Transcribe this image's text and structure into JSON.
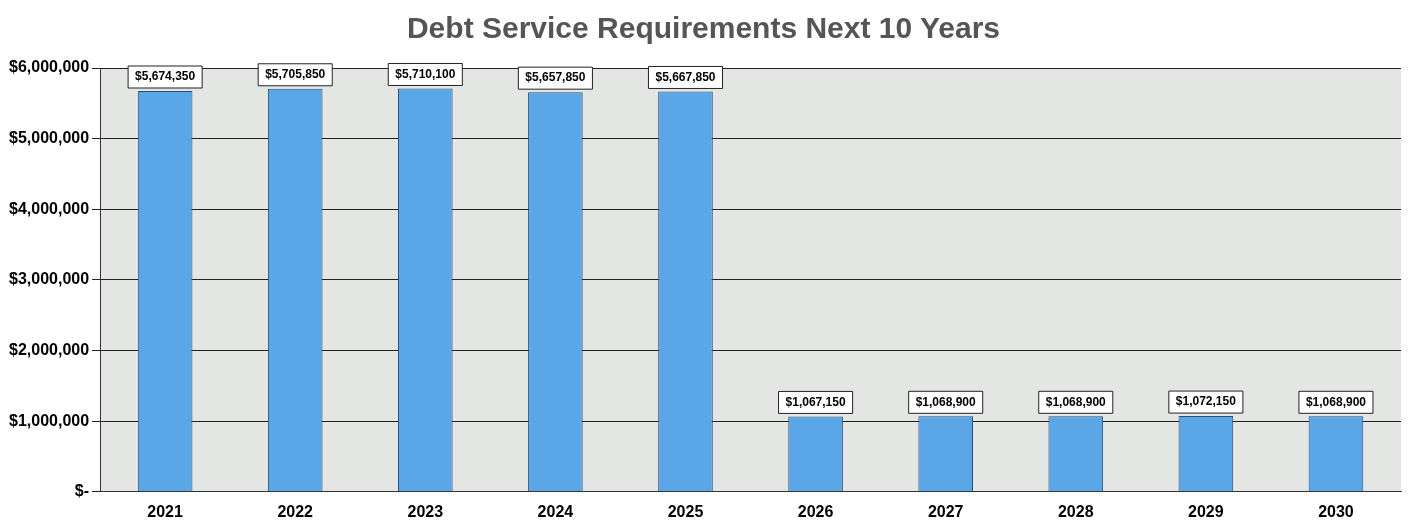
{
  "chart_data": {
    "type": "bar",
    "title": "Debt Service Requirements Next 10 Years",
    "categories": [
      "2021",
      "2022",
      "2023",
      "2024",
      "2025",
      "2026",
      "2027",
      "2028",
      "2029",
      "2030"
    ],
    "values": [
      5674350,
      5705850,
      5710100,
      5657850,
      5667850,
      1067150,
      1068900,
      1068900,
      1072150,
      1068900
    ],
    "value_labels": [
      "$5,674,350",
      "$5,705,850",
      "$5,710,100",
      "$5,657,850",
      "$5,667,850",
      "$1,067,150",
      "$1,068,900",
      "$1,068,900",
      "$1,072,150",
      "$1,068,900"
    ],
    "color": "#5aa6e6",
    "ylim": [
      0,
      6000000
    ],
    "yticks": [
      {
        "value": 0,
        "label": "$-"
      },
      {
        "value": 1000000,
        "label": "$1,000,000"
      },
      {
        "value": 2000000,
        "label": "$2,000,000"
      },
      {
        "value": 3000000,
        "label": "$3,000,000"
      },
      {
        "value": 4000000,
        "label": "$4,000,000"
      },
      {
        "value": 5000000,
        "label": "$5,000,000"
      },
      {
        "value": 6000000,
        "label": "$6,000,000"
      }
    ],
    "grid": "y"
  }
}
